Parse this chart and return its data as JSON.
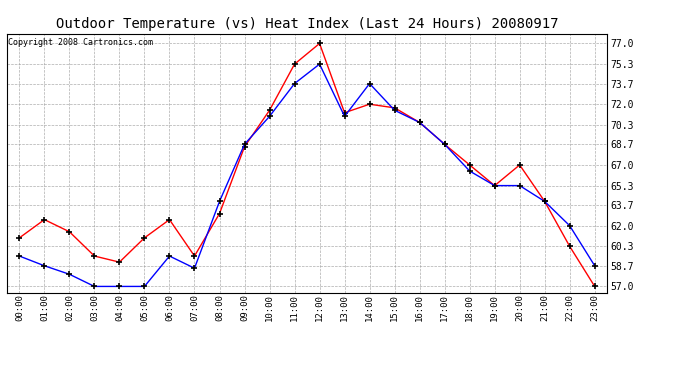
{
  "title": "Outdoor Temperature (vs) Heat Index (Last 24 Hours) 20080917",
  "copyright": "Copyright 2008 Cartronics.com",
  "hours": [
    "00:00",
    "01:00",
    "02:00",
    "03:00",
    "04:00",
    "05:00",
    "06:00",
    "07:00",
    "08:00",
    "09:00",
    "10:00",
    "11:00",
    "12:00",
    "13:00",
    "14:00",
    "15:00",
    "16:00",
    "17:00",
    "18:00",
    "19:00",
    "20:00",
    "21:00",
    "22:00",
    "23:00"
  ],
  "temp_red": [
    61.0,
    62.5,
    61.5,
    59.5,
    59.0,
    61.0,
    62.5,
    59.5,
    63.0,
    68.5,
    71.5,
    75.3,
    77.0,
    71.3,
    72.0,
    71.7,
    70.5,
    68.7,
    67.0,
    65.3,
    67.0,
    64.0,
    60.3,
    57.0
  ],
  "temp_blue": [
    59.5,
    58.7,
    58.0,
    57.0,
    57.0,
    57.0,
    59.5,
    58.5,
    64.0,
    68.7,
    71.0,
    73.7,
    75.3,
    71.0,
    73.7,
    71.5,
    70.5,
    68.7,
    66.5,
    65.3,
    65.3,
    64.0,
    62.0,
    58.7
  ],
  "red_color": "#FF0000",
  "blue_color": "#0000FF",
  "background_color": "#FFFFFF",
  "plot_bg_color": "#FFFFFF",
  "grid_color": "#999999",
  "yticks": [
    57.0,
    58.7,
    60.3,
    62.0,
    63.7,
    65.3,
    67.0,
    68.7,
    70.3,
    72.0,
    73.7,
    75.3,
    77.0
  ],
  "ylim": [
    56.5,
    77.8
  ],
  "title_fontsize": 10,
  "copyright_fontsize": 6
}
